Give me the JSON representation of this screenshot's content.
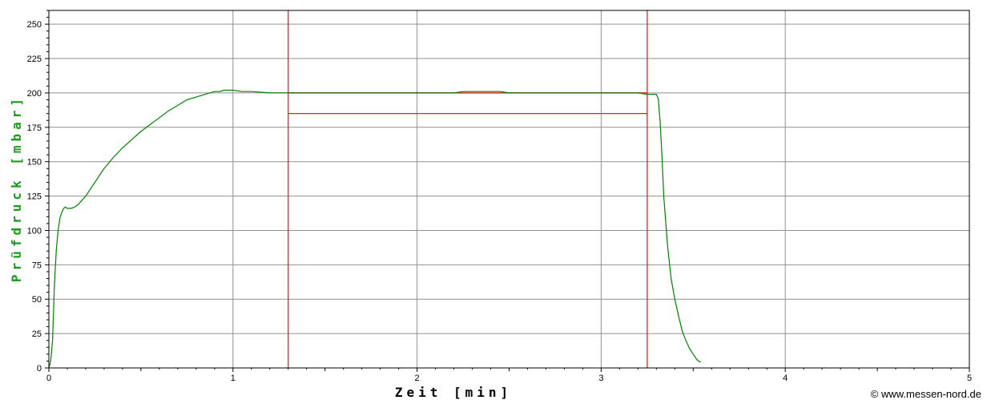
{
  "chart_data": {
    "type": "line",
    "xlabel": "Zeit [min]",
    "ylabel": "Prüfdruck [mbar]",
    "xlim": [
      0,
      5
    ],
    "ylim": [
      0,
      260
    ],
    "x_ticks": [
      0,
      1,
      2,
      3,
      4,
      5
    ],
    "y_ticks": [
      0,
      25,
      50,
      75,
      100,
      125,
      150,
      175,
      200,
      225,
      250
    ],
    "grid": true,
    "colors": {
      "pressure": "#008000",
      "window": "#ee1c1c",
      "ylabel": "#1a9a1a"
    },
    "series": [
      {
        "x": [
          0,
          0.01,
          0.02,
          0.03,
          0.04,
          0.05,
          0.06,
          0.07,
          0.08,
          0.09,
          0.1,
          0.11,
          0.12,
          0.14,
          0.16,
          0.18,
          0.2,
          0.22,
          0.25,
          0.28,
          0.3,
          0.35,
          0.4,
          0.45,
          0.5,
          0.55,
          0.6,
          0.65,
          0.7,
          0.75,
          0.8,
          0.85,
          0.9,
          0.93,
          0.95,
          0.98,
          1.0,
          1.05,
          1.1,
          1.2,
          1.3,
          1.5,
          1.8,
          2.0,
          2.2,
          2.25,
          2.3,
          2.45,
          2.5,
          2.6,
          2.8,
          3.0,
          3.2,
          3.25,
          3.27,
          3.3,
          3.31,
          3.32,
          3.33,
          3.34,
          3.36,
          3.38,
          3.4,
          3.42,
          3.44,
          3.46,
          3.48,
          3.5,
          3.52,
          3.54
        ],
        "y": [
          0,
          5,
          20,
          60,
          85,
          100,
          109,
          113,
          116,
          117,
          116,
          116,
          116,
          117,
          119,
          122,
          125,
          129,
          135,
          141,
          145,
          153,
          160,
          166,
          172,
          177,
          182,
          187,
          191,
          195,
          197,
          199,
          201,
          201,
          202,
          202,
          202,
          201,
          201,
          200,
          200,
          200,
          200,
          200,
          200,
          201,
          201,
          201,
          200,
          200,
          200,
          200,
          200,
          199,
          199,
          199,
          196,
          180,
          155,
          125,
          90,
          65,
          50,
          38,
          27,
          20,
          14,
          10,
          6,
          4
        ]
      }
    ],
    "window": {
      "x_start": 1.3,
      "x_end": 3.25,
      "y_upper": 200,
      "y_lower": 185
    }
  },
  "copyright": "© www.messen-nord.de"
}
